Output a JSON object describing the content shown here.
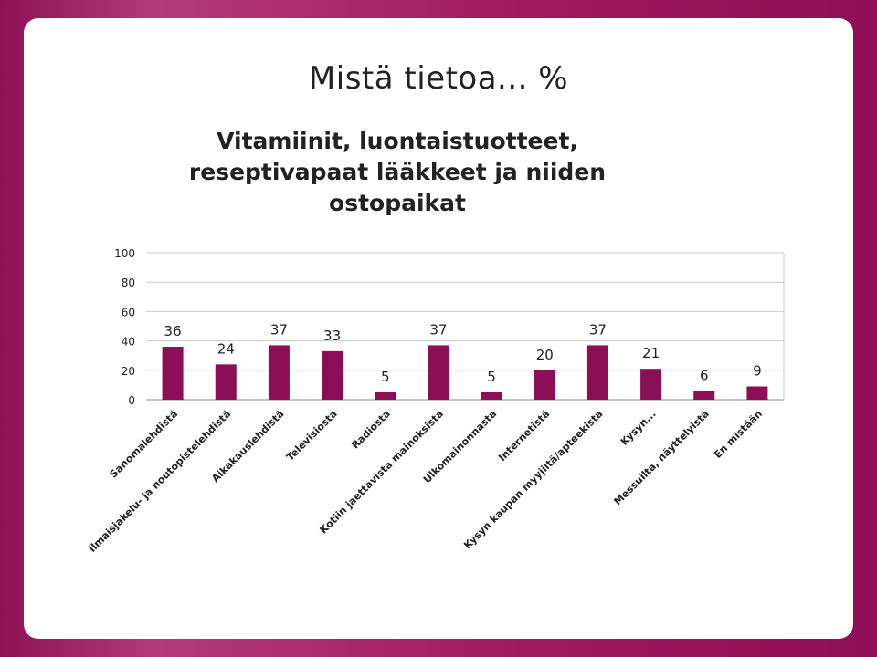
{
  "slide": {
    "title": "Mistä tietoa... %"
  },
  "chart_data": {
    "type": "bar",
    "title": "Vitamiinit, luontaistuotteet, reseptivapaat lääkkeet ja niiden ostopaikat",
    "xlabel": "",
    "ylabel": "",
    "ylim": [
      0,
      100
    ],
    "yticks": [
      0,
      20,
      40,
      60,
      80,
      100
    ],
    "grid": true,
    "legend": "none",
    "categories": [
      "Sanomalehdistä",
      "Ilmaisjakelu- ja noutopistelehdistä",
      "Aikakauslehdistä",
      "Televisiosta",
      "Radiosta",
      "Kotiin jaettavista mainoksista",
      "Ulkomainonnasta",
      "Internetistä",
      "Kysyn kaupan myyjiltä/apteekista",
      "Kysyn...",
      "Messuilta, näyttelyistä",
      "En mistään"
    ],
    "values": [
      36,
      24,
      37,
      33,
      5,
      37,
      5,
      20,
      37,
      21,
      6,
      9
    ],
    "bar_color": "#8b0e57"
  }
}
